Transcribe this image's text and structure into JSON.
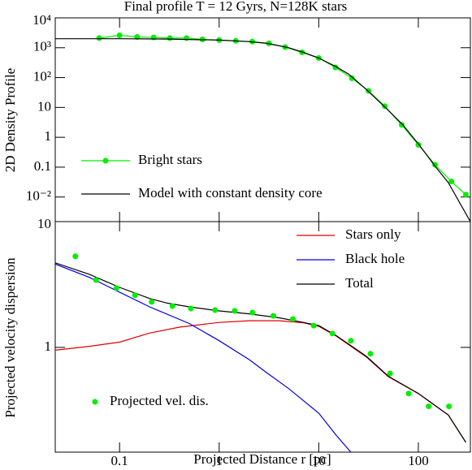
{
  "chart_data": [
    {
      "type": "line",
      "title": "Final profile T = 12 Gyrs, N=128K stars",
      "ylabel": "2D Density Profile",
      "xlog": true,
      "ylog": true,
      "xlim": [
        0.0226,
        333
      ],
      "ylim": [
        0.0015,
        10000
      ],
      "xticks": [
        0.1,
        1,
        10,
        100
      ],
      "yticks": [
        {
          "value": 10000,
          "label": "10⁴"
        },
        {
          "value": 1000,
          "label": "10³"
        },
        {
          "value": 100,
          "label": "10²"
        },
        10,
        1,
        0.1,
        {
          "value": 0.01,
          "label": "10⁻²"
        }
      ],
      "legend": "lower left",
      "series": [
        {
          "name": "Bright stars",
          "color": "#00ee00",
          "style": "line+marker",
          "x": [
            0.0625,
            0.1,
            0.15,
            0.22,
            0.32,
            0.47,
            0.68,
            1,
            1.47,
            2.15,
            3.16,
            4.6,
            6.8,
            10,
            14.7,
            21.5,
            31.6,
            46,
            68,
            100,
            147,
            215,
            300
          ],
          "values": [
            2100,
            2600,
            2300,
            2200,
            2100,
            2100,
            1900,
            1800,
            1700,
            1600,
            1400,
            1050,
            700,
            450,
            220,
            95,
            36,
            11,
            2.6,
            0.56,
            0.12,
            0.033,
            0.012
          ]
        },
        {
          "name": "Model with constant density core",
          "color": "#000000",
          "style": "line",
          "x": [
            0.0226,
            0.1,
            0.3,
            1,
            2,
            3,
            5,
            7,
            10,
            15,
            20,
            30,
            50,
            70,
            100,
            150,
            200,
            333
          ],
          "values": [
            2000,
            2000,
            1950,
            1800,
            1600,
            1400,
            1000,
            700,
            450,
            230,
            130,
            40,
            8,
            2.6,
            0.6,
            0.1,
            0.03,
            0.0015
          ]
        }
      ]
    },
    {
      "type": "line",
      "xlabel": "Projected Distance r [pc]",
      "ylabel": "Projected velocity dispersion",
      "xlog": true,
      "ylog": true,
      "xlim": [
        0.0226,
        333
      ],
      "ylim": [
        0.147,
        10
      ],
      "xticks": [
        0.1,
        1,
        10,
        100
      ],
      "yticks": [
        1,
        10
      ],
      "legend": "upper right",
      "series": [
        {
          "name": "Stars only",
          "color": "#dd0000",
          "style": "line",
          "x": [
            0.0226,
            0.05,
            0.1,
            0.2,
            0.4,
            1,
            2,
            4,
            7,
            10,
            15,
            20,
            30,
            50,
            100,
            200,
            300
          ],
          "values": [
            0.95,
            1.02,
            1.1,
            1.3,
            1.45,
            1.58,
            1.63,
            1.63,
            1.57,
            1.47,
            1.23,
            1.05,
            0.84,
            0.585,
            0.43,
            0.29,
            0.176
          ]
        },
        {
          "name": "Black hole",
          "color": "#0000dd",
          "style": "line",
          "x": [
            0.0226,
            0.05,
            0.1,
            0.2,
            0.5,
            1,
            2,
            3,
            5,
            10,
            15,
            21
          ],
          "values": [
            4.6,
            3.6,
            2.75,
            2.1,
            1.55,
            1.13,
            0.8,
            0.63,
            0.47,
            0.3,
            0.2,
            0.147
          ]
        },
        {
          "name": "Total",
          "color": "#000000",
          "style": "line",
          "x": [
            0.0226,
            0.05,
            0.1,
            0.2,
            0.3,
            0.5,
            1,
            2,
            4,
            7,
            10,
            15,
            20,
            30,
            50,
            100,
            200,
            300
          ],
          "values": [
            4.7,
            3.8,
            3.0,
            2.45,
            2.25,
            2.1,
            1.95,
            1.85,
            1.72,
            1.58,
            1.49,
            1.24,
            1.06,
            0.85,
            0.59,
            0.43,
            0.29,
            0.176
          ]
        },
        {
          "name": "Projected vel. dis.",
          "color": "#00ee00",
          "style": "marker",
          "x": [
            0.036,
            0.058,
            0.093,
            0.143,
            0.21,
            0.34,
            0.52,
            0.91,
            1.43,
            2.16,
            3.5,
            5.5,
            8.9,
            13.7,
            21,
            33,
            52,
            80,
            127,
            203
          ],
          "values": [
            5.3,
            3.43,
            2.96,
            2.6,
            2.3,
            2.13,
            2.04,
            1.98,
            1.95,
            1.89,
            1.78,
            1.68,
            1.49,
            1.29,
            1.13,
            0.89,
            0.62,
            0.43,
            0.34,
            0.34
          ]
        }
      ]
    }
  ]
}
